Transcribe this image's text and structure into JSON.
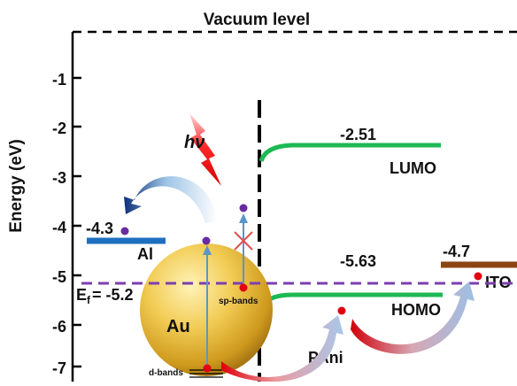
{
  "title": "Vacuum level",
  "axis": {
    "label": "Energy (eV)",
    "ticks": [
      "-1",
      "-2",
      "-3",
      "-4",
      "-5",
      "-6",
      "-7"
    ]
  },
  "levels": {
    "al": {
      "value": "-4.3",
      "name": "Al",
      "color": "#1f6fc0"
    },
    "ito": {
      "value": "-4.7",
      "name": "ITO",
      "color": "#8b4513"
    },
    "lumo": {
      "value": "-2.51",
      "name": "LUMO",
      "color": "#1db954"
    },
    "homo": {
      "value": "-5.63",
      "name": "HOMO",
      "color": "#1db954"
    },
    "fermi": {
      "label": "E",
      "subscript": "f",
      "value": "= -5.2",
      "color": "#7b3fb0"
    }
  },
  "gold": {
    "name": "Au",
    "sp_bands": "sp-bands",
    "d_bands": "d-bands"
  },
  "photon": {
    "symbol": "hν"
  },
  "polymer": {
    "name": "PAni"
  }
}
